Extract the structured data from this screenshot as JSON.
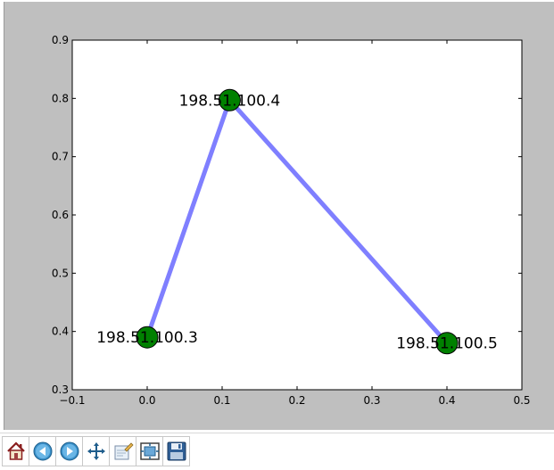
{
  "toolbar": {
    "buttons": [
      {
        "name": "home",
        "icon": "home-icon"
      },
      {
        "name": "back",
        "icon": "arrow-left-icon"
      },
      {
        "name": "forward",
        "icon": "arrow-right-icon"
      },
      {
        "name": "pan",
        "icon": "move-arrows-icon"
      },
      {
        "name": "edit",
        "icon": "edit-icon"
      },
      {
        "name": "subplots",
        "icon": "subplots-icon"
      },
      {
        "name": "save",
        "icon": "save-disk-icon"
      }
    ]
  },
  "colors": {
    "figure_bg": "#bfbfbf",
    "axes_bg": "#ffffff",
    "edge": "#7f7fff",
    "node_fill": "#008000",
    "node_stroke": "#000000"
  },
  "chart_data": {
    "type": "scatter",
    "title": "",
    "xlabel": "",
    "ylabel": "",
    "xlim": [
      -0.1,
      0.5
    ],
    "ylim": [
      0.3,
      0.9
    ],
    "xticks": [
      -0.1,
      0.0,
      0.1,
      0.2,
      0.3,
      0.4,
      0.5
    ],
    "xtick_labels": [
      "−0.1",
      "0.0",
      "0.1",
      "0.2",
      "0.3",
      "0.4",
      "0.5"
    ],
    "yticks": [
      0.3,
      0.4,
      0.5,
      0.6,
      0.7,
      0.8,
      0.9
    ],
    "ytick_labels": [
      "0.3",
      "0.4",
      "0.5",
      "0.6",
      "0.7",
      "0.8",
      "0.9"
    ],
    "grid": false,
    "nodes": [
      {
        "label": "198.51.100.3",
        "x": 0.0,
        "y": 0.39
      },
      {
        "label": "198.51.100.4",
        "x": 0.11,
        "y": 0.797
      },
      {
        "label": "198.51.100.5",
        "x": 0.4,
        "y": 0.38
      }
    ],
    "edges": [
      {
        "from": 0,
        "to": 1
      },
      {
        "from": 1,
        "to": 2
      }
    ]
  }
}
